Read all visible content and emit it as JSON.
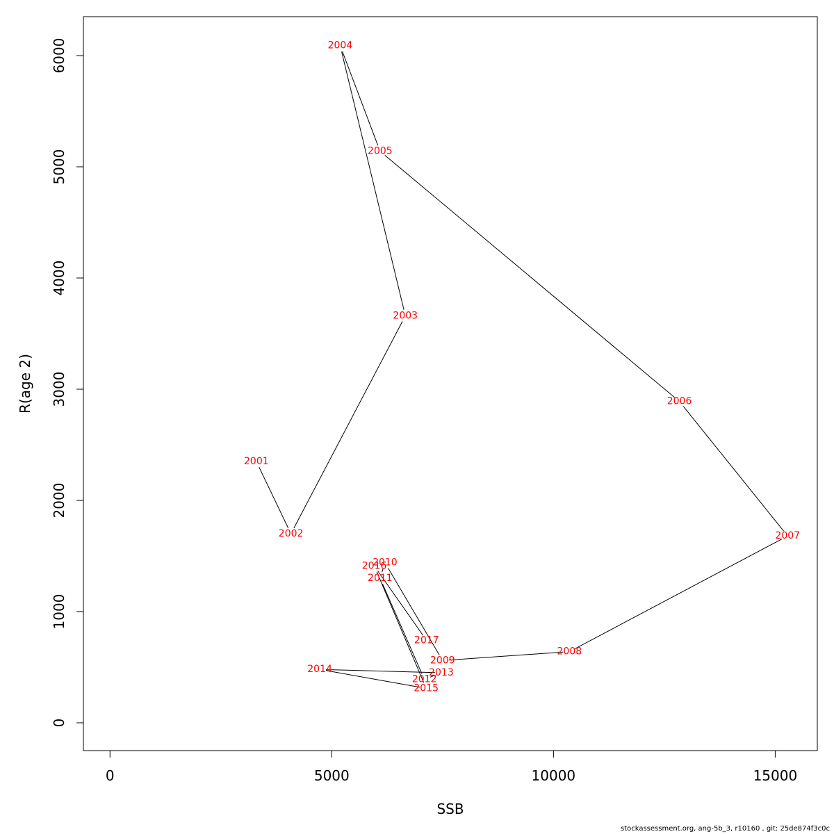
{
  "chart_data": {
    "type": "line",
    "xlabel": "SSB",
    "ylabel": "R(age 2)",
    "xlim": [
      -600,
      15950
    ],
    "ylim": [
      -250,
      6350
    ],
    "x_ticks": [
      0,
      5000,
      10000,
      15000
    ],
    "y_ticks": [
      0,
      1000,
      2000,
      3000,
      4000,
      5000,
      6000
    ],
    "grid": false,
    "line_color": "#000000",
    "label_color": "#ff0000",
    "points": [
      {
        "year": "2001",
        "x": 3300,
        "y": 2350
      },
      {
        "year": "2002",
        "x": 4080,
        "y": 1700
      },
      {
        "year": "2003",
        "x": 6660,
        "y": 3660
      },
      {
        "year": "2004",
        "x": 5190,
        "y": 6090
      },
      {
        "year": "2005",
        "x": 6090,
        "y": 5140
      },
      {
        "year": "2006",
        "x": 12840,
        "y": 2890
      },
      {
        "year": "2007",
        "x": 15280,
        "y": 1680
      },
      {
        "year": "2008",
        "x": 10360,
        "y": 640
      },
      {
        "year": "2009",
        "x": 7500,
        "y": 560
      },
      {
        "year": "2010",
        "x": 6200,
        "y": 1440
      },
      {
        "year": "2011",
        "x": 6090,
        "y": 1300
      },
      {
        "year": "2012",
        "x": 7090,
        "y": 390
      },
      {
        "year": "2013",
        "x": 7470,
        "y": 450
      },
      {
        "year": "2014",
        "x": 4730,
        "y": 480
      },
      {
        "year": "2015",
        "x": 7130,
        "y": 310
      },
      {
        "year": "2016",
        "x": 5960,
        "y": 1410
      },
      {
        "year": "2017",
        "x": 7140,
        "y": 740
      }
    ]
  },
  "footnote": "stockassessment.org, ang-5b_3, r10160 , git: 25de874f3c0c"
}
